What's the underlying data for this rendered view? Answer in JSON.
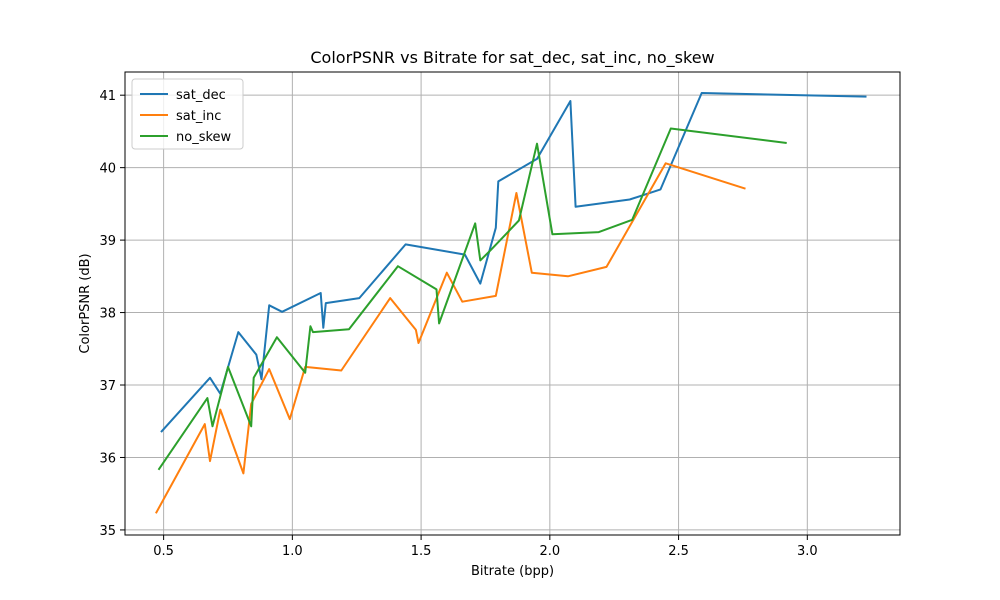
{
  "chart_data": {
    "type": "line",
    "title": "ColorPSNR vs Bitrate for sat_dec, sat_inc, no_skew",
    "xlabel": "Bitrate (bpp)",
    "ylabel": "ColorPSNR (dB)",
    "xlim": [
      0.35,
      3.36
    ],
    "ylim": [
      34.93,
      41.32
    ],
    "xticks": [
      0.5,
      1.0,
      1.5,
      2.0,
      2.5,
      3.0
    ],
    "xtick_labels": [
      "0.5",
      "1.0",
      "1.5",
      "2.0",
      "2.5",
      "3.0"
    ],
    "yticks": [
      35,
      36,
      37,
      38,
      39,
      40,
      41
    ],
    "ytick_labels": [
      "35",
      "36",
      "37",
      "38",
      "39",
      "40",
      "41"
    ],
    "grid": true,
    "legend_position": "top-left",
    "series": [
      {
        "name": "sat_dec",
        "color": "#1f77b4",
        "points": [
          [
            0.49,
            36.35
          ],
          [
            0.68,
            37.1
          ],
          [
            0.72,
            36.88
          ],
          [
            0.79,
            37.73
          ],
          [
            0.86,
            37.42
          ],
          [
            0.88,
            37.08
          ],
          [
            0.91,
            38.1
          ],
          [
            0.96,
            38.01
          ],
          [
            1.11,
            38.27
          ],
          [
            1.12,
            37.79
          ],
          [
            1.13,
            38.13
          ],
          [
            1.26,
            38.2
          ],
          [
            1.44,
            38.94
          ],
          [
            1.67,
            38.8
          ],
          [
            1.73,
            38.4
          ],
          [
            1.79,
            39.17
          ],
          [
            1.8,
            39.81
          ],
          [
            1.95,
            40.12
          ],
          [
            2.08,
            40.92
          ],
          [
            2.1,
            39.46
          ],
          [
            2.31,
            39.56
          ],
          [
            2.43,
            39.7
          ],
          [
            2.59,
            41.03
          ],
          [
            3.23,
            40.98
          ]
        ]
      },
      {
        "name": "sat_inc",
        "color": "#ff7f0e",
        "points": [
          [
            0.47,
            35.23
          ],
          [
            0.66,
            36.46
          ],
          [
            0.68,
            35.95
          ],
          [
            0.72,
            36.66
          ],
          [
            0.81,
            35.78
          ],
          [
            0.84,
            36.74
          ],
          [
            0.91,
            37.22
          ],
          [
            0.99,
            36.53
          ],
          [
            1.05,
            37.25
          ],
          [
            1.19,
            37.2
          ],
          [
            1.38,
            38.2
          ],
          [
            1.48,
            37.76
          ],
          [
            1.49,
            37.58
          ],
          [
            1.6,
            38.55
          ],
          [
            1.66,
            38.15
          ],
          [
            1.79,
            38.23
          ],
          [
            1.87,
            39.65
          ],
          [
            1.93,
            38.55
          ],
          [
            2.07,
            38.5
          ],
          [
            2.22,
            38.63
          ],
          [
            2.45,
            40.06
          ],
          [
            2.76,
            39.71
          ]
        ]
      },
      {
        "name": "no_skew",
        "color": "#2ca02c",
        "points": [
          [
            0.48,
            35.83
          ],
          [
            0.67,
            36.82
          ],
          [
            0.69,
            36.43
          ],
          [
            0.75,
            37.25
          ],
          [
            0.84,
            36.43
          ],
          [
            0.85,
            37.1
          ],
          [
            0.94,
            37.66
          ],
          [
            1.05,
            37.17
          ],
          [
            1.07,
            37.81
          ],
          [
            1.08,
            37.73
          ],
          [
            1.22,
            37.77
          ],
          [
            1.41,
            38.64
          ],
          [
            1.56,
            38.32
          ],
          [
            1.57,
            37.85
          ],
          [
            1.71,
            39.23
          ],
          [
            1.73,
            38.72
          ],
          [
            1.77,
            38.86
          ],
          [
            1.88,
            39.27
          ],
          [
            1.95,
            40.33
          ],
          [
            2.01,
            39.08
          ],
          [
            2.19,
            39.11
          ],
          [
            2.32,
            39.28
          ],
          [
            2.47,
            40.54
          ],
          [
            2.92,
            40.34
          ]
        ]
      }
    ]
  }
}
